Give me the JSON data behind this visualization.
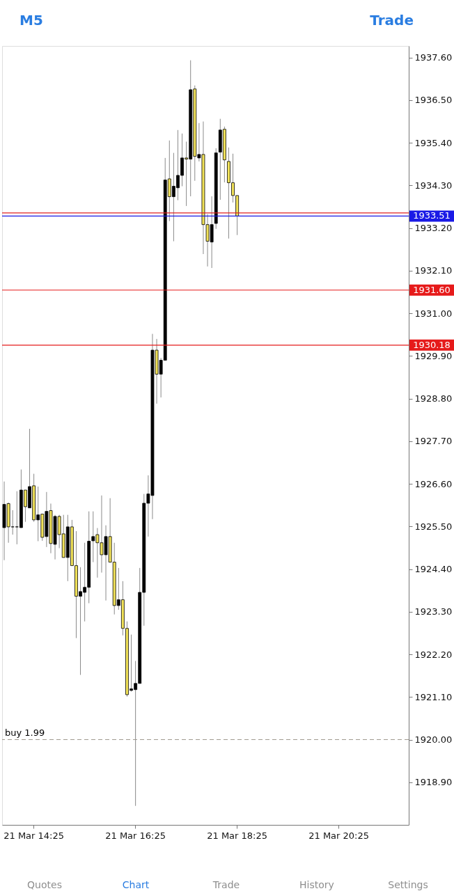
{
  "chart_data": {
    "type": "candlestick",
    "categories": [
      null,
      null,
      null,
      null,
      null,
      null,
      null,
      "21 Mar 14:25",
      null,
      null,
      null,
      null,
      null,
      null,
      null,
      null,
      null,
      null,
      null,
      null,
      null,
      null,
      null,
      null,
      null,
      null,
      null,
      null,
      null,
      null,
      null,
      "21 Mar 16:25",
      null,
      null,
      null,
      null,
      null,
      null,
      null,
      null,
      null,
      null,
      null,
      null,
      null,
      null,
      null,
      null,
      null,
      null,
      null,
      null,
      null,
      null,
      null,
      "21 Mar 18:25",
      null,
      null,
      null,
      null,
      null,
      null,
      null,
      null,
      null,
      null,
      null,
      null,
      null,
      null,
      null,
      null,
      null,
      null,
      null,
      null,
      null,
      null,
      null,
      "21 Mar 20:25",
      null,
      null,
      null,
      null,
      null,
      null,
      null,
      null,
      null,
      null,
      null,
      null,
      null,
      null,
      null,
      null
    ],
    "ohlc": [
      [
        1925.47,
        1926.66,
        1924.63,
        1926.07
      ],
      [
        1926.09,
        1926.12,
        1925.08,
        1925.49
      ],
      [
        1925.49,
        1925.92,
        1925.29,
        1925.49
      ],
      [
        1925.49,
        1926.41,
        1925.04,
        1925.49
      ],
      [
        1925.47,
        1926.97,
        1925.47,
        1926.44
      ],
      [
        1926.44,
        1926.44,
        1925.62,
        1926.01
      ],
      [
        1925.98,
        1928.02,
        1925.98,
        1926.53
      ],
      [
        1926.55,
        1926.86,
        1925.62,
        1925.67
      ],
      [
        1925.67,
        1926.53,
        1925.12,
        1925.8
      ],
      [
        1925.82,
        1925.82,
        1925.13,
        1925.22
      ],
      [
        1925.24,
        1926.39,
        1924.97,
        1925.89
      ],
      [
        1925.91,
        1926.09,
        1924.81,
        1925.06
      ],
      [
        1925.04,
        1925.8,
        1924.65,
        1925.76
      ],
      [
        1925.76,
        1925.8,
        1924.94,
        1925.29
      ],
      [
        1925.31,
        1925.8,
        1924.7,
        1924.7
      ],
      [
        1924.7,
        1925.8,
        1924.09,
        1925.49
      ],
      [
        1925.49,
        1925.67,
        1924.49,
        1924.49
      ],
      [
        1924.49,
        1925.38,
        1922.62,
        1923.7
      ],
      [
        1923.7,
        1924.45,
        1921.67,
        1923.82
      ],
      [
        1923.8,
        1925.08,
        1923.05,
        1923.93
      ],
      [
        1923.93,
        1925.89,
        1923.52,
        1925.12
      ],
      [
        1925.13,
        1925.89,
        1924.58,
        1925.24
      ],
      [
        1925.29,
        1925.46,
        1924.18,
        1925.08
      ],
      [
        1925.08,
        1926.3,
        1924.31,
        1924.77
      ],
      [
        1924.77,
        1925.53,
        1923.59,
        1925.24
      ],
      [
        1925.24,
        1926.23,
        1924.58,
        1924.58
      ],
      [
        1924.58,
        1925.08,
        1923.23,
        1923.46
      ],
      [
        1923.46,
        1924.43,
        1923.35,
        1923.61
      ],
      [
        1923.61,
        1924.09,
        1922.69,
        1922.87
      ],
      [
        1922.87,
        1923.05,
        1921.11,
        1921.16
      ],
      [
        1921.27,
        1922.71,
        1921.24,
        1921.31
      ],
      [
        1921.29,
        1922.03,
        1918.29,
        1921.45
      ],
      [
        1921.45,
        1924.43,
        1921.45,
        1923.8
      ],
      [
        1923.8,
        1926.34,
        1922.94,
        1926.1
      ],
      [
        1926.1,
        1926.82,
        1925.24,
        1926.34
      ],
      [
        1926.3,
        1930.47,
        1925.69,
        1930.05
      ],
      [
        1930.05,
        1930.34,
        1928.67,
        1929.43
      ],
      [
        1929.43,
        1929.85,
        1928.83,
        1929.79
      ],
      [
        1929.79,
        1935.01,
        1929.79,
        1934.44
      ],
      [
        1934.47,
        1935.46,
        1933.38,
        1934.01
      ],
      [
        1934.01,
        1935.14,
        1932.86,
        1934.28
      ],
      [
        1934.24,
        1935.73,
        1933.92,
        1934.56
      ],
      [
        1934.56,
        1935.64,
        1934.28,
        1935.01
      ],
      [
        1934.98,
        1935.43,
        1933.77,
        1935.01
      ],
      [
        1934.98,
        1937.53,
        1934.02,
        1936.77
      ],
      [
        1936.79,
        1936.88,
        1934.42,
        1935.05
      ],
      [
        1935.01,
        1935.91,
        1934.92,
        1935.1
      ],
      [
        1935.1,
        1935.95,
        1932.53,
        1933.29
      ],
      [
        1933.29,
        1933.56,
        1932.21,
        1932.86
      ],
      [
        1932.84,
        1934.02,
        1932.17,
        1933.29
      ],
      [
        1933.32,
        1935.26,
        1933.18,
        1935.14
      ],
      [
        1935.16,
        1936.02,
        1933.93,
        1935.73
      ],
      [
        1935.75,
        1935.82,
        1934.38,
        1934.96
      ],
      [
        1934.92,
        1935.28,
        1932.93,
        1934.37
      ],
      [
        1934.37,
        1935.12,
        1933.86,
        1934.04
      ],
      [
        1934.04,
        1934.04,
        1933.02,
        1933.51
      ],
      null,
      null,
      null,
      null,
      null,
      null,
      null,
      null,
      null,
      null,
      null,
      null,
      null,
      null,
      null,
      null,
      null,
      null,
      null,
      null,
      null,
      null,
      null,
      null,
      null,
      null,
      null,
      null,
      null,
      null,
      null,
      null,
      null,
      null,
      null,
      null,
      null,
      null,
      null,
      null
    ],
    "colors": [
      "#000000",
      "#f2e35a",
      "#000000",
      "#000000",
      "#000000",
      "#f2e35a",
      "#000000",
      "#f2e35a",
      "#000000",
      "#f2e35a",
      "#000000",
      "#f2e35a",
      "#000000",
      "#f2e35a",
      "#f2e35a",
      "#000000",
      "#f2e35a",
      "#f2e35a",
      "#000000",
      "#000000",
      "#000000",
      "#000000",
      "#f2e35a",
      "#f2e35a",
      "#000000",
      "#f2e35a",
      "#f2e35a",
      "#000000",
      "#f2e35a",
      "#f2e35a",
      "#000000",
      "#000000",
      "#000000",
      "#000000",
      "#000000",
      "#000000",
      "#f2e35a",
      "#000000",
      "#000000",
      "#f2e35a",
      "#000000",
      "#000000",
      "#000000",
      "#f2e35a",
      "#000000",
      "#f2e35a",
      "#000000",
      "#f2e35a",
      "#f2e35a",
      "#000000",
      "#000000",
      "#000000",
      "#f2e35a",
      "#f2e35a",
      "#f2e35a",
      "#f2e35a",
      null,
      null,
      null,
      null,
      null,
      null,
      null,
      null,
      null,
      null,
      null,
      null,
      null,
      null,
      null,
      null,
      null,
      null,
      null,
      null,
      null,
      null,
      null,
      null,
      null,
      null,
      null,
      null,
      null,
      null,
      null,
      null,
      null,
      null,
      null,
      null,
      null,
      null,
      null,
      null
    ],
    "ylim": [
      1917.8,
      1937.9
    ],
    "yticks": [
      {
        "value": 1937.6,
        "label": "1937.60"
      },
      {
        "value": 1936.5,
        "label": "1936.50"
      },
      {
        "value": 1935.4,
        "label": "1935.40"
      },
      {
        "value": 1934.3,
        "label": "1934.30"
      },
      {
        "value": 1933.2,
        "label": "1933.20"
      },
      {
        "value": 1932.1,
        "label": "1932.10"
      },
      {
        "value": 1931.0,
        "label": "1931.00"
      },
      {
        "value": 1929.9,
        "label": "1929.90"
      },
      {
        "value": 1928.8,
        "label": "1928.80"
      },
      {
        "value": 1927.7,
        "label": "1927.70"
      },
      {
        "value": 1926.6,
        "label": "1926.60"
      },
      {
        "value": 1925.5,
        "label": "1925.50"
      },
      {
        "value": 1924.4,
        "label": "1924.40"
      },
      {
        "value": 1923.3,
        "label": "1923.30"
      },
      {
        "value": 1922.2,
        "label": "1922.20"
      },
      {
        "value": 1921.1,
        "label": "1921.10"
      },
      {
        "value": 1920.0,
        "label": "1920.00"
      },
      {
        "value": 1918.9,
        "label": "1918.90"
      }
    ],
    "ref_lines": [
      {
        "axis": "y",
        "value": 1933.59,
        "label": null,
        "color": "#e02020",
        "line_style": "solid"
      },
      {
        "axis": "y",
        "value": 1933.51,
        "label": "1933.51",
        "color": "#1a1ae6",
        "line_style": "solid"
      },
      {
        "axis": "y",
        "value": 1931.6,
        "label": "1931.60",
        "color": "#e61a1a",
        "line_style": "solid"
      },
      {
        "axis": "y",
        "value": 1930.18,
        "label": "1930.18",
        "color": "#e61a1a",
        "line_style": "solid"
      },
      {
        "axis": "y",
        "value": 1920.0,
        "label": "buy 1.99",
        "color": "#a09a90",
        "line_style": "dashed"
      }
    ],
    "annotations": [
      "M5",
      "Trade",
      "Quotes",
      "Chart",
      "Trade",
      "History",
      "Settings"
    ]
  }
}
